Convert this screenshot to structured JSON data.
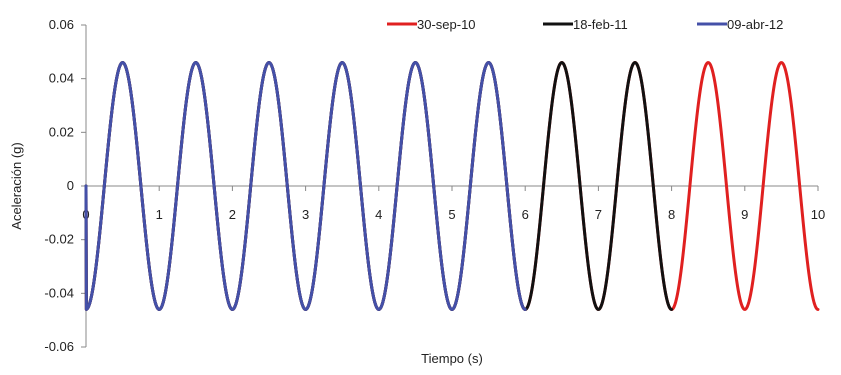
{
  "chart_data": {
    "type": "line",
    "title": "",
    "xlabel": "Tiempo (s)",
    "ylabel": "Aceleración (g)",
    "xlim": [
      0,
      10
    ],
    "ylim": [
      -0.06,
      0.06
    ],
    "x_ticks": [
      0,
      1,
      2,
      3,
      4,
      5,
      6,
      7,
      8,
      9,
      10
    ],
    "y_ticks": [
      0.06,
      0.04,
      0.02,
      0,
      -0.02,
      -0.04,
      -0.06
    ],
    "y_tick_labels": [
      "0.06",
      "0.04",
      "0.02",
      "0",
      "-0.02",
      "-0.04",
      "-0.06"
    ],
    "x_tick_labels": [
      "0",
      "1",
      "2",
      "3",
      "4",
      "5",
      "6",
      "7",
      "8",
      "9",
      "10"
    ],
    "grid": false,
    "legend_position": "top-right",
    "waveform": {
      "shape": "sine",
      "amplitude": 0.046,
      "period": 1.0,
      "phase_start": -0.25,
      "initial_value": 0
    },
    "series": [
      {
        "name": "30-sep-10",
        "color": "#e02020",
        "x_end": 10
      },
      {
        "name": "18-feb-11",
        "color": "#111111",
        "x_end": 8
      },
      {
        "name": "09-abr-12",
        "color": "#4450a8",
        "x_end": 6
      }
    ]
  }
}
